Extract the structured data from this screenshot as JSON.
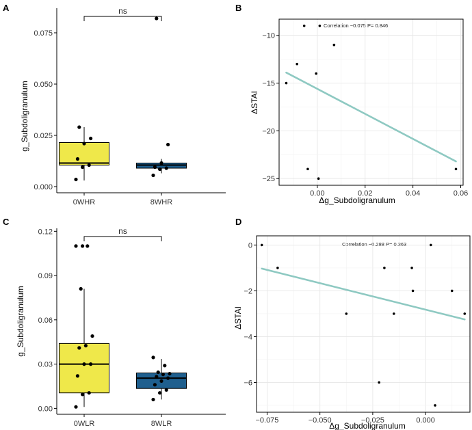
{
  "chart_data": [
    {
      "panel": "A",
      "type": "box",
      "ylabel": "g_Subdoligranulum",
      "ylim": [
        -0.003,
        0.087
      ],
      "yticks": [
        0.0,
        0.025,
        0.05,
        0.075
      ],
      "ytick_labels": [
        "0.000",
        "0.025",
        "0.050",
        "0.075"
      ],
      "categories": [
        "0WHR",
        "8WHR"
      ],
      "colors": [
        "#efe84a",
        "#1f5f8e"
      ],
      "boxes": [
        {
          "min": 0.003,
          "q1": 0.0105,
          "median": 0.0115,
          "q3": 0.0215,
          "max": 0.029
        },
        {
          "min": 0.0065,
          "q1": 0.009,
          "median": 0.0105,
          "q3": 0.0115,
          "max": 0.0135
        }
      ],
      "points": [
        [
          0.0035,
          0.0095,
          0.0105,
          0.0135,
          0.021,
          0.0235,
          0.029
        ],
        [
          0.0055,
          0.0085,
          0.009,
          0.0095,
          0.0115,
          0.0205,
          0.082
        ]
      ],
      "significance": "ns"
    },
    {
      "panel": "B",
      "type": "scatter",
      "xlabel": "Δg_Subdoligranulum",
      "ylabel": "ΔSTAI",
      "xlim": [
        -0.016,
        0.061
      ],
      "ylim": [
        -25.7,
        -8.3
      ],
      "xticks": [
        0.0,
        0.02,
        0.04,
        0.06
      ],
      "xtick_labels": [
        "0.00",
        "0.02",
        "0.04",
        "0.06"
      ],
      "yticks": [
        -10,
        -15,
        -20,
        -25
      ],
      "ytick_labels": [
        "−10",
        "−15",
        "−20",
        "−25"
      ],
      "points": [
        {
          "x": -0.013,
          "y": -15
        },
        {
          "x": -0.0085,
          "y": -13
        },
        {
          "x": -0.0055,
          "y": -9
        },
        {
          "x": -0.004,
          "y": -24
        },
        {
          "x": -0.0005,
          "y": -14
        },
        {
          "x": 0.0005,
          "y": -25
        },
        {
          "x": 0.001,
          "y": -9
        },
        {
          "x": 0.007,
          "y": -11
        },
        {
          "x": 0.058,
          "y": -24
        }
      ],
      "fit_line": {
        "x": [
          -0.013,
          0.058
        ],
        "y": [
          -13.9,
          -23.2
        ]
      },
      "line_color": "#8ec9c2",
      "annotation": "Correlation −0.075 P= 0.846"
    },
    {
      "panel": "C",
      "type": "box",
      "ylabel": "g_Subdoligranulum",
      "ylim": [
        -0.004,
        0.122
      ],
      "yticks": [
        0.0,
        0.03,
        0.06,
        0.09,
        0.12
      ],
      "ytick_labels": [
        "0.00",
        "0.03",
        "0.06",
        "0.09",
        "0.12"
      ],
      "categories": [
        "0WLR",
        "8WLR"
      ],
      "colors": [
        "#efe84a",
        "#1f5f8e"
      ],
      "boxes": [
        {
          "min": 0.001,
          "q1": 0.0105,
          "median": 0.03,
          "q3": 0.044,
          "max": 0.081
        },
        {
          "min": 0.006,
          "q1": 0.0135,
          "median": 0.0205,
          "q3": 0.024,
          "max": 0.0335
        }
      ],
      "points": [
        [
          0.001,
          0.0095,
          0.0105,
          0.022,
          0.03,
          0.03,
          0.041,
          0.0425,
          0.049,
          0.081,
          0.11,
          0.11,
          0.11
        ],
        [
          0.006,
          0.0105,
          0.0125,
          0.016,
          0.0185,
          0.0205,
          0.0215,
          0.023,
          0.0235,
          0.0245,
          0.029,
          0.0345
        ]
      ],
      "significance": "ns"
    },
    {
      "panel": "D",
      "type": "scatter",
      "xlabel": "Δg_Subdoligranulum",
      "ylabel": "ΔSTAI",
      "xlim": [
        -0.08,
        0.021
      ],
      "ylim": [
        -7.3,
        0.4
      ],
      "xticks": [
        -0.075,
        -0.05,
        -0.025,
        0.0
      ],
      "xtick_labels": [
        "−0.075",
        "−0.050",
        "−0.025",
        "0.000"
      ],
      "yticks": [
        0,
        -2,
        -4,
        -6
      ],
      "ytick_labels": [
        "0",
        "−2",
        "−4",
        "−6"
      ],
      "points": [
        {
          "x": -0.0775,
          "y": 0
        },
        {
          "x": -0.07,
          "y": -1
        },
        {
          "x": -0.0375,
          "y": -3
        },
        {
          "x": -0.022,
          "y": -6
        },
        {
          "x": -0.0195,
          "y": -1
        },
        {
          "x": -0.015,
          "y": -3
        },
        {
          "x": -0.0065,
          "y": -1
        },
        {
          "x": -0.006,
          "y": -2
        },
        {
          "x": 0.0025,
          "y": 0
        },
        {
          "x": 0.0045,
          "y": -7
        },
        {
          "x": 0.0125,
          "y": -2
        },
        {
          "x": 0.0185,
          "y": -3
        }
      ],
      "fit_line": {
        "x": [
          -0.0775,
          0.0185
        ],
        "y": [
          -1.03,
          -3.25
        ]
      },
      "line_color": "#8ec9c2",
      "annotation": "Correlation −0.288 P= 0.363"
    }
  ]
}
